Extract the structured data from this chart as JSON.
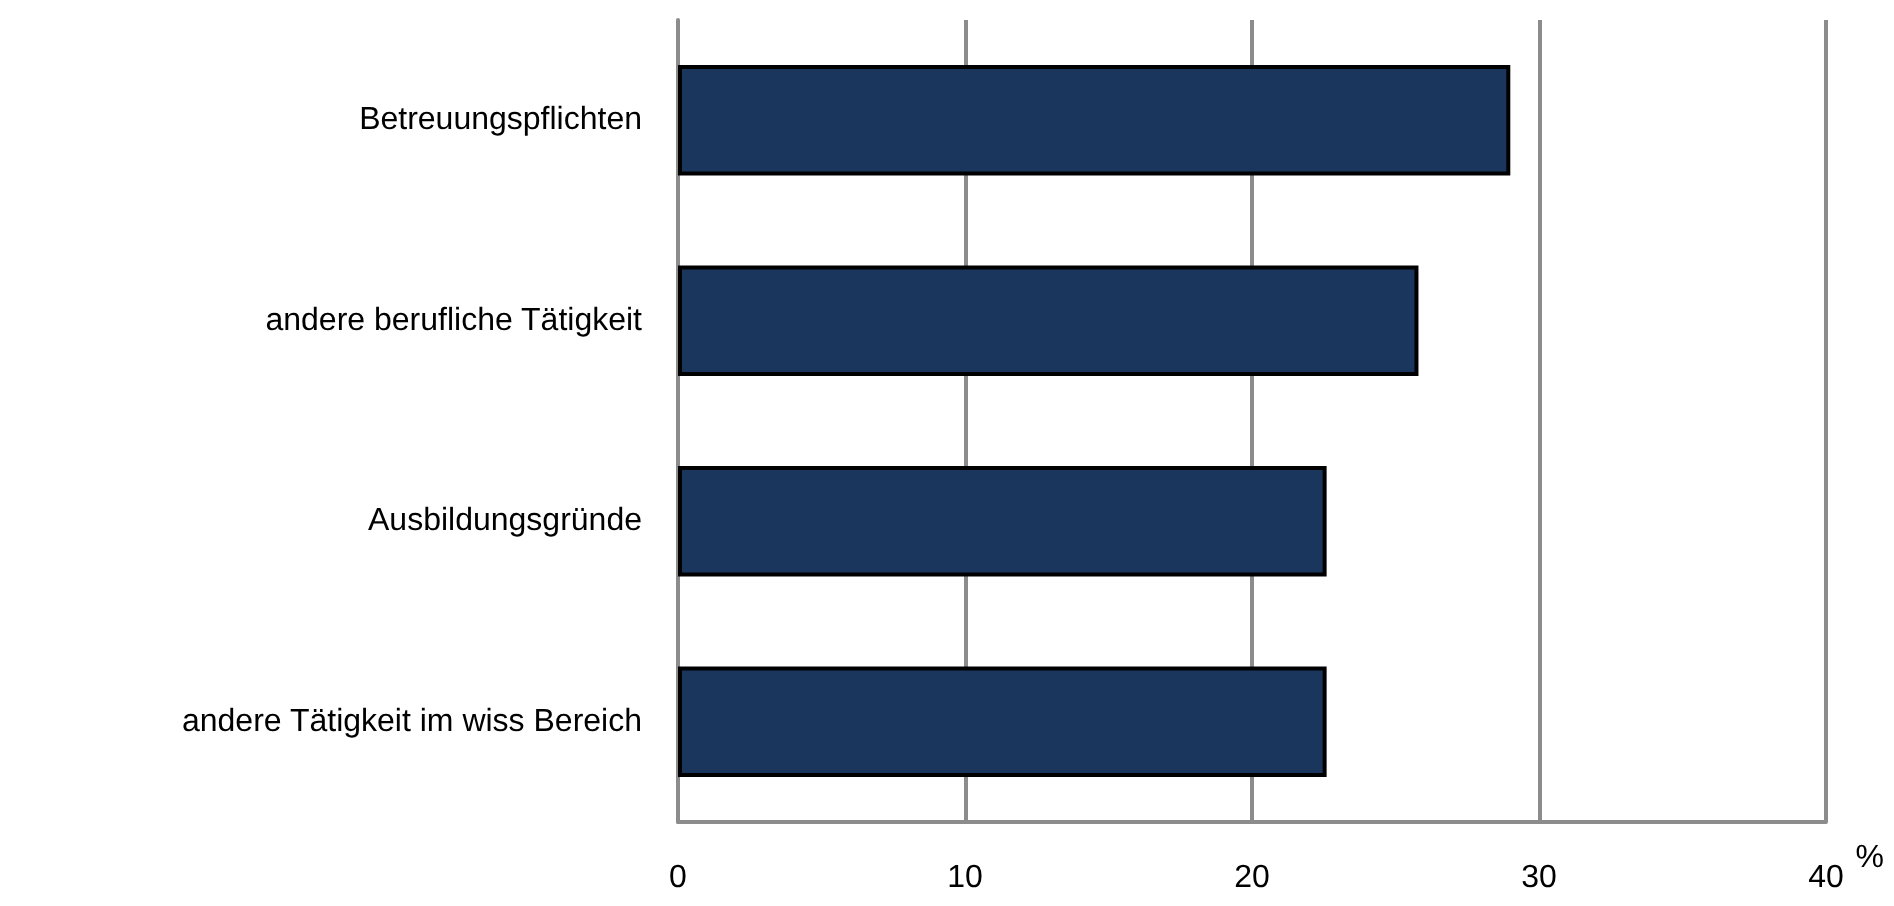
{
  "chart_data": {
    "type": "bar",
    "orientation": "horizontal",
    "categories": [
      "Betreuungspflichten",
      "andere berufliche Tätigkeit",
      "Ausbildungsgründe",
      "andere Tätigkeit im wiss Bereich"
    ],
    "values": [
      29.0,
      25.8,
      22.6,
      22.6
    ],
    "color": "#1b365d",
    "xlabel": "%",
    "xlim": [
      0,
      40
    ],
    "xticks": [
      0,
      10,
      20,
      30,
      40
    ],
    "grid": "x"
  }
}
